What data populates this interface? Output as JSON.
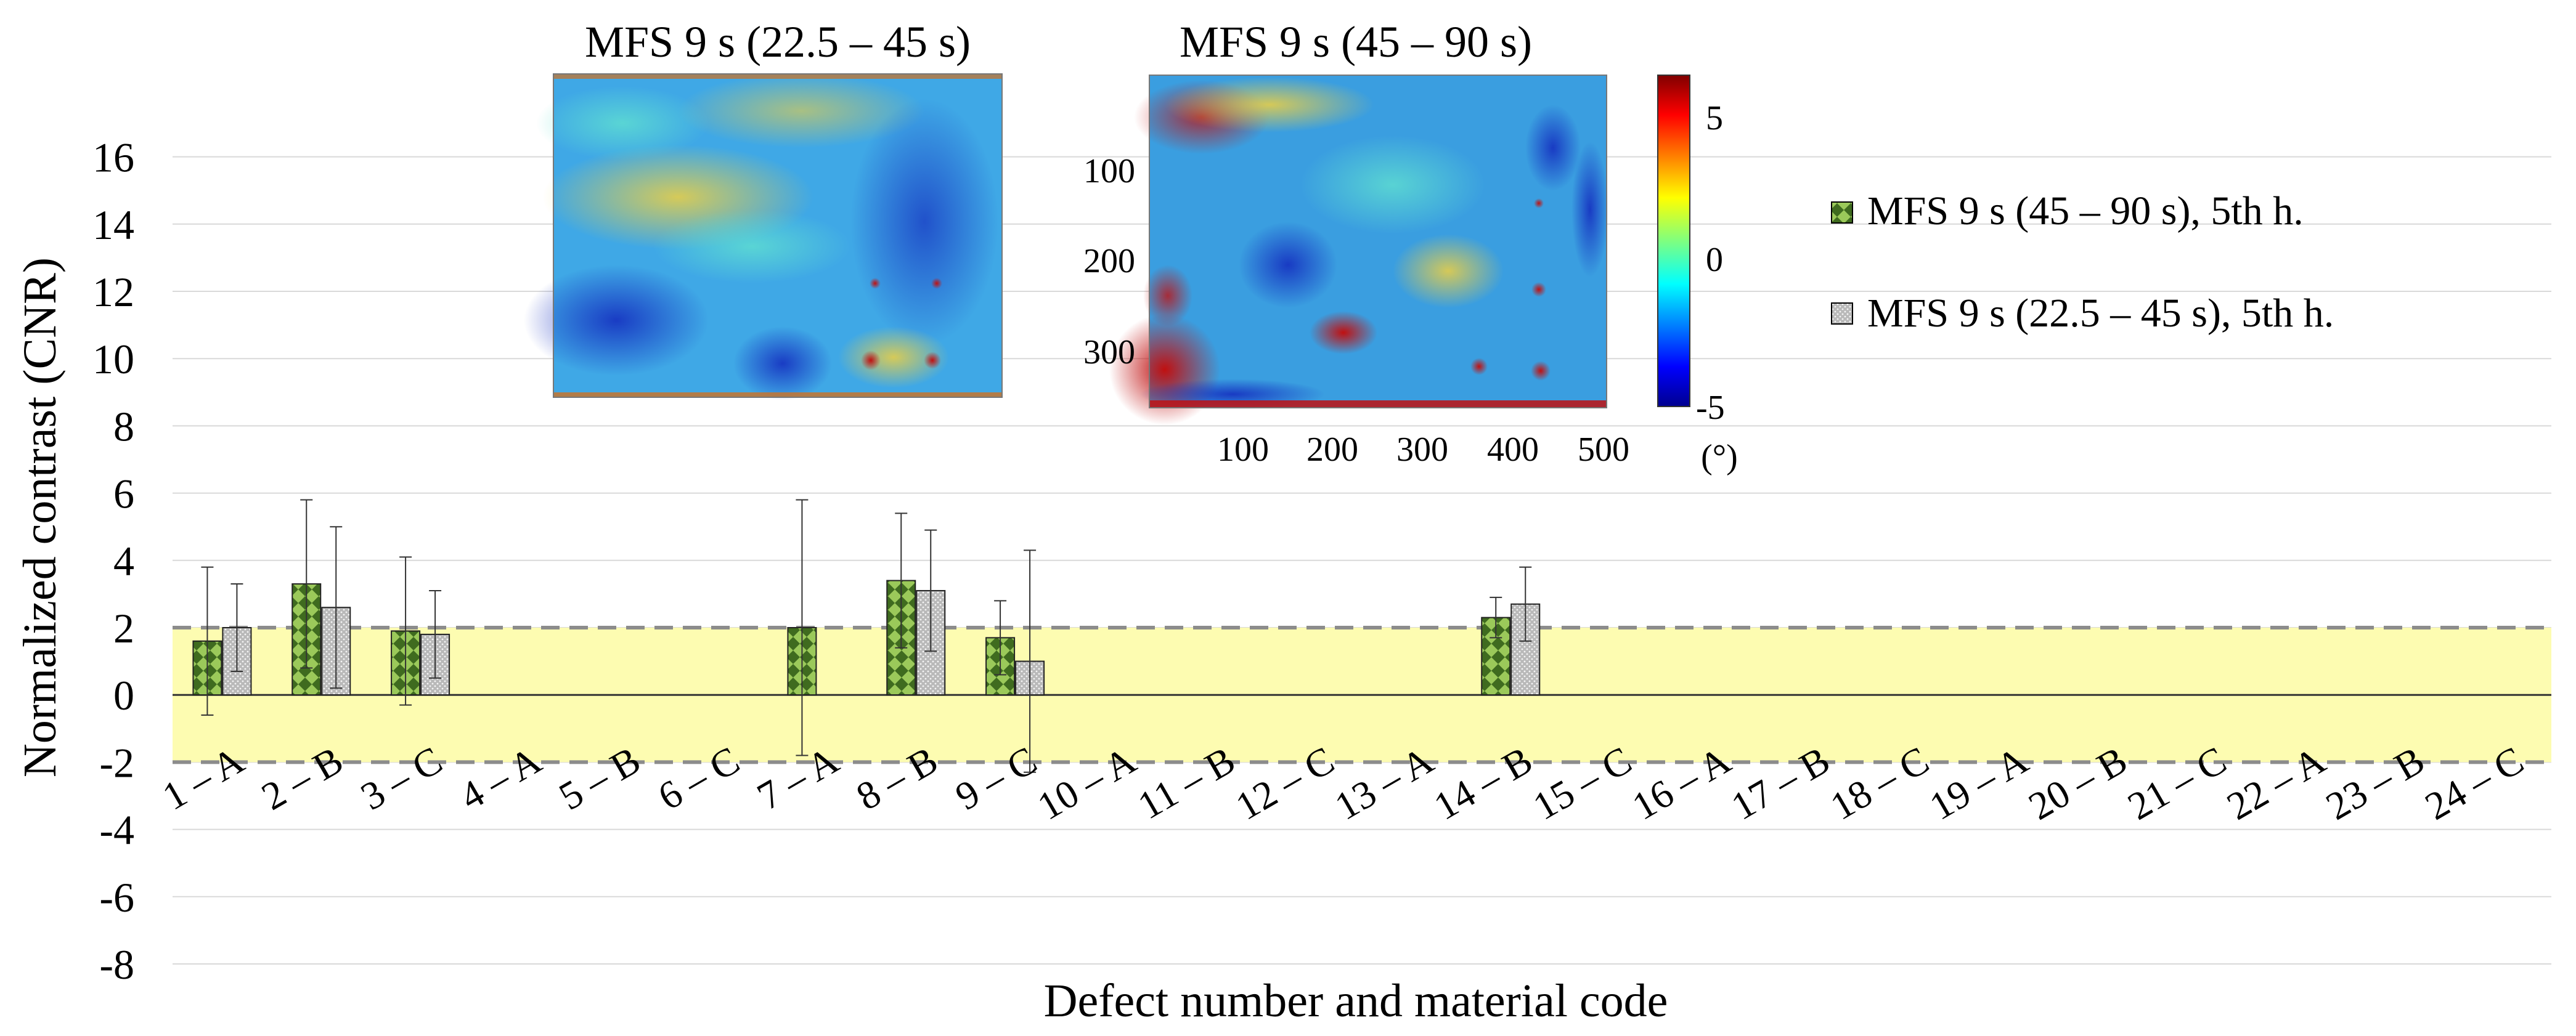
{
  "chart_data": {
    "type": "bar",
    "title": "",
    "xlabel": "Defect number and material code",
    "ylabel": "Normalized contrast (CNR)",
    "ylim": [
      -8,
      18
    ],
    "yticks": [
      -8,
      -6,
      -4,
      -2,
      0,
      2,
      4,
      6,
      8,
      10,
      12,
      14,
      16
    ],
    "grid": true,
    "threshold_band": {
      "low": -2,
      "high": 2,
      "color": "#fdfcb1",
      "line_color": "#8c8c8c"
    },
    "categories": [
      "1 – A",
      "2 – B",
      "3 – C",
      "4 – A",
      "5 – B",
      "6 – C",
      "7 – A",
      "8 – B",
      "9 – C",
      "10 – A",
      "11 – B",
      "12 – C",
      "13 – A",
      "14 – B",
      "15 – C",
      "16 – A",
      "17 – B",
      "18 – C",
      "19 – A",
      "20 – B",
      "21 – C",
      "22 – A",
      "23 – B",
      "24 – C"
    ],
    "legend_position": "right",
    "series": [
      {
        "name": "MFS 9 s (45 – 90 s), 5th h.",
        "color": "#6d9b3a",
        "pattern": "diamond",
        "values": [
          1.6,
          3.3,
          1.9,
          null,
          null,
          null,
          2.0,
          3.4,
          1.7,
          null,
          null,
          null,
          null,
          2.3,
          null,
          null,
          null,
          null,
          null,
          null,
          null,
          null,
          null,
          null
        ],
        "errors": [
          2.2,
          2.5,
          2.2,
          null,
          null,
          null,
          3.8,
          2.0,
          1.1,
          null,
          null,
          null,
          null,
          0.6,
          null,
          null,
          null,
          null,
          null,
          null,
          null,
          null,
          null,
          null
        ]
      },
      {
        "name": "MFS 9 s (22.5 – 45 s), 5th h.",
        "color": "#a9a9a9",
        "pattern": "dots",
        "values": [
          2.0,
          2.6,
          1.8,
          null,
          null,
          null,
          null,
          3.1,
          1.0,
          null,
          null,
          null,
          null,
          2.7,
          null,
          null,
          null,
          null,
          null,
          null,
          null,
          null,
          null,
          null
        ],
        "errors": [
          1.3,
          2.4,
          1.3,
          null,
          null,
          null,
          null,
          1.8,
          3.3,
          null,
          null,
          null,
          null,
          1.1,
          null,
          null,
          null,
          null,
          null,
          null,
          null,
          null,
          null,
          null
        ]
      }
    ]
  },
  "insets": {
    "left_title": "MFS 9 s (22.5 – 45 s)",
    "right_title": "MFS 9 s (45 – 90 s)",
    "right_yticks": [
      "100",
      "200",
      "300"
    ],
    "right_xticks": [
      "100",
      "200",
      "300",
      "400",
      "500"
    ],
    "colorbar_ticks": [
      "5",
      "0",
      "-5"
    ],
    "colorbar_unit": "(°)"
  }
}
